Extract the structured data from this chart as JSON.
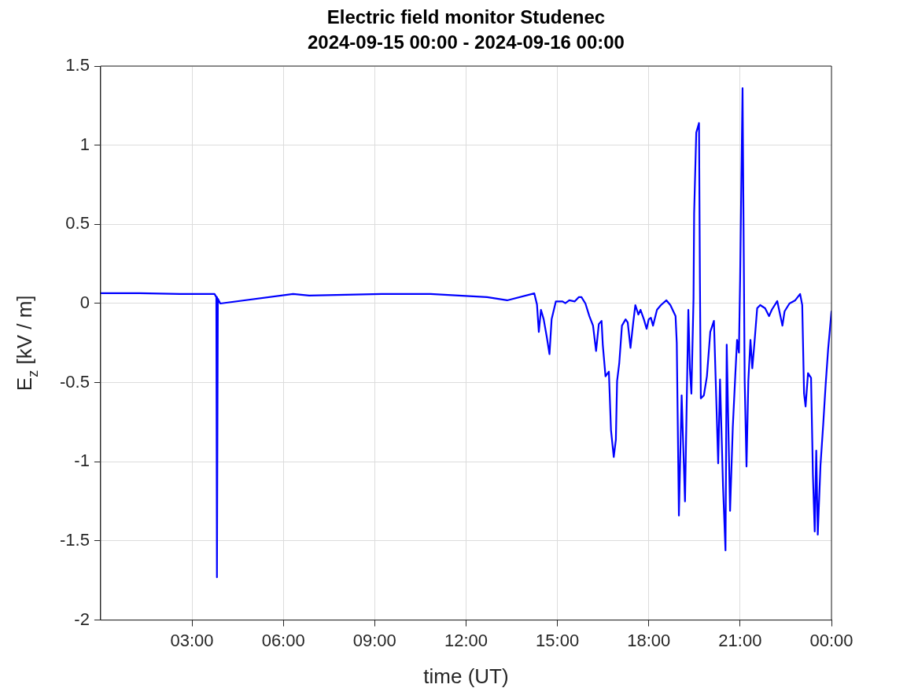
{
  "chart_data": {
    "type": "line",
    "title": "Electric field monitor Studenec\n2024-09-15 00:00 - 2024-09-16 00:00",
    "xlabel": "time (UT)",
    "ylabel": "E$_{z}$ [kV / m]",
    "xlim": [
      0,
      24
    ],
    "xticks": [
      {
        "value": 3,
        "label": "03:00"
      },
      {
        "value": 6,
        "label": "06:00"
      },
      {
        "value": 9,
        "label": "09:00"
      },
      {
        "value": 12,
        "label": "12:00"
      },
      {
        "value": 15,
        "label": "15:00"
      },
      {
        "value": 18,
        "label": "18:00"
      },
      {
        "value": 21,
        "label": "21:00"
      },
      {
        "value": 24,
        "label": "00:00"
      }
    ],
    "ylim": [
      -2,
      1.5
    ],
    "yticks": [
      -2,
      -1.5,
      -1,
      -0.5,
      0,
      0.5,
      1,
      1.5
    ],
    "grid": true,
    "legend": false,
    "marker": "none",
    "line_style": "solid",
    "series": [
      {
        "color": "#0000ff",
        "x": [
          0,
          1.27,
          2.6,
          3.74,
          3.8,
          3.82,
          3.85,
          3.93,
          6.32,
          6.85,
          9.24,
          10.83,
          12.69,
          13.35,
          14.24,
          14.33,
          14.39,
          14.46,
          14.55,
          14.65,
          14.74,
          14.81,
          14.95,
          15.17,
          15.26,
          15.39,
          15.57,
          15.7,
          15.79,
          15.92,
          16.05,
          16.17,
          16.27,
          16.36,
          16.45,
          16.49,
          16.58,
          16.69,
          16.76,
          16.85,
          16.92,
          16.96,
          17.03,
          17.12,
          17.24,
          17.31,
          17.4,
          17.49,
          17.56,
          17.66,
          17.73,
          17.84,
          17.93,
          18,
          18.07,
          18.14,
          18.27,
          18.4,
          18.58,
          18.71,
          18.88,
          18.92,
          18.99,
          19.08,
          19.19,
          19.3,
          19.35,
          19.4,
          19.47,
          19.49,
          19.56,
          19.65,
          19.68,
          19.71,
          19.81,
          19.91,
          20.02,
          20.14,
          20.28,
          20.34,
          20.44,
          20.52,
          20.56,
          20.67,
          20.76,
          20.84,
          20.9,
          20.96,
          21,
          21.08,
          21.12,
          21.15,
          21.21,
          21.27,
          21.34,
          21.4,
          21.47,
          21.56,
          21.66,
          21.82,
          21.95,
          22.04,
          22.22,
          22.39,
          22.46,
          22.62,
          22.81,
          22.97,
          23.04,
          23.1,
          23.15,
          23.23,
          23.33,
          23.39,
          23.45,
          23.5,
          23.55,
          23.64,
          23.73,
          23.81,
          23.89,
          24
        ],
        "values": [
          0.065,
          0.065,
          0.06,
          0.06,
          0.04,
          -1.73,
          0.03,
          0,
          0.06,
          0.05,
          0.06,
          0.06,
          0.04,
          0.02,
          0.064,
          -0.007,
          -0.18,
          -0.04,
          -0.1,
          -0.21,
          -0.32,
          -0.1,
          0.013,
          0.013,
          0.002,
          0.02,
          0.013,
          0.04,
          0.04,
          0,
          -0.08,
          -0.14,
          -0.3,
          -0.13,
          -0.11,
          -0.26,
          -0.46,
          -0.43,
          -0.8,
          -0.97,
          -0.86,
          -0.49,
          -0.38,
          -0.14,
          -0.1,
          -0.12,
          -0.28,
          -0.12,
          -0.01,
          -0.07,
          -0.04,
          -0.1,
          -0.16,
          -0.1,
          -0.09,
          -0.14,
          -0.04,
          -0.01,
          0.02,
          -0.01,
          -0.08,
          -0.25,
          -1.34,
          -0.58,
          -1.25,
          -0.04,
          -0.41,
          -0.57,
          0.03,
          0.57,
          1.08,
          1.14,
          0.15,
          -0.6,
          -0.58,
          -0.46,
          -0.18,
          -0.11,
          -1.01,
          -0.48,
          -1.16,
          -1.56,
          -0.26,
          -1.31,
          -0.78,
          -0.46,
          -0.23,
          -0.31,
          0.15,
          1.36,
          0.31,
          -0.49,
          -1.03,
          -0.49,
          -0.23,
          -0.41,
          -0.25,
          -0.03,
          -0.01,
          -0.03,
          -0.08,
          -0.04,
          0.015,
          -0.14,
          -0.05,
          0,
          0.02,
          0.06,
          -0.01,
          -0.57,
          -0.65,
          -0.44,
          -0.47,
          -1.08,
          -1.44,
          -0.93,
          -1.46,
          -1.02,
          -0.76,
          -0.51,
          -0.29,
          -0.05
        ]
      }
    ]
  }
}
